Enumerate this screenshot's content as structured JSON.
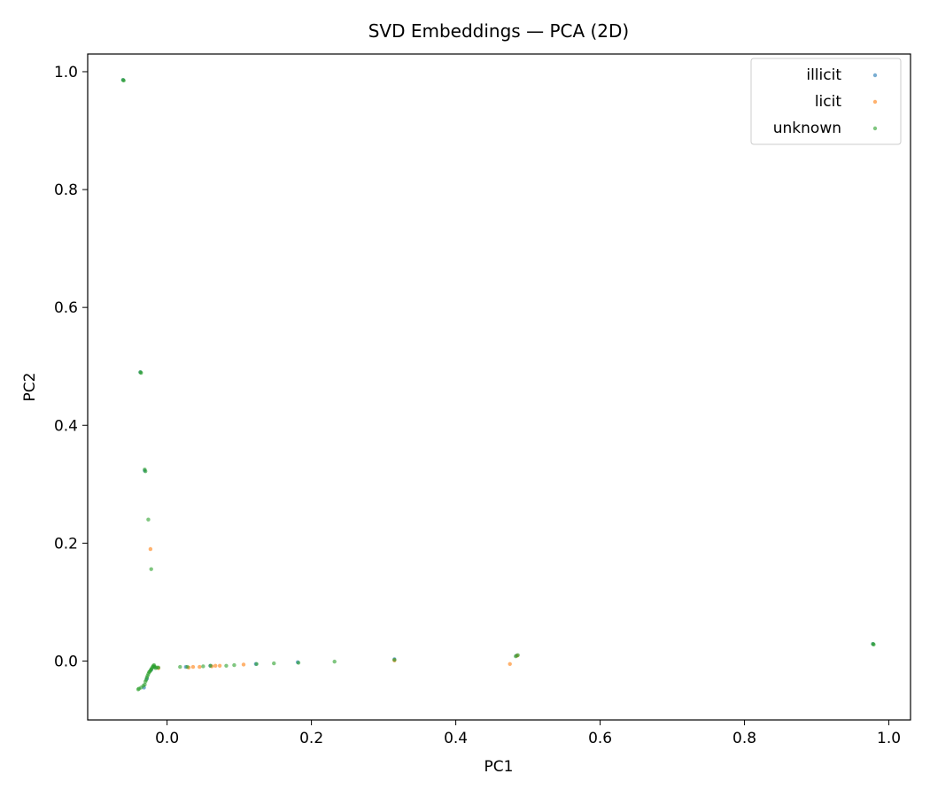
{
  "chart_data": {
    "type": "scatter",
    "title": "SVD Embeddings — PCA (2D)",
    "xlabel": "PC1",
    "ylabel": "PC2",
    "xlim": [
      -0.11,
      1.03
    ],
    "ylim": [
      -0.1,
      1.03
    ],
    "xticks": [
      0.0,
      0.2,
      0.4,
      0.6,
      0.8,
      1.0
    ],
    "xtick_labels": [
      "0.0",
      "0.2",
      "0.4",
      "0.6",
      "0.8",
      "1.0"
    ],
    "yticks": [
      0.0,
      0.2,
      0.4,
      0.6,
      0.8,
      1.0
    ],
    "ytick_labels": [
      "0.0",
      "0.2",
      "0.4",
      "0.6",
      "0.8",
      "1.0"
    ],
    "grid": false,
    "legend_position": "top-right",
    "series": [
      {
        "name": "illicit",
        "color": "#1f77b4",
        "points": [
          [
            -0.061,
            0.986
          ],
          [
            -0.037,
            0.49
          ],
          [
            -0.031,
            0.323
          ],
          [
            -0.032,
            -0.045
          ],
          [
            -0.028,
            -0.03
          ],
          [
            -0.022,
            -0.015
          ],
          [
            -0.018,
            -0.01
          ],
          [
            0.026,
            -0.01
          ],
          [
            0.06,
            -0.008
          ],
          [
            0.123,
            -0.005
          ],
          [
            0.181,
            -0.002
          ],
          [
            0.315,
            0.003
          ],
          [
            0.484,
            0.009
          ],
          [
            0.978,
            0.029
          ]
        ]
      },
      {
        "name": "licit",
        "color": "#ff7f0e",
        "points": [
          [
            -0.023,
            0.19
          ],
          [
            -0.012,
            -0.012
          ],
          [
            0.03,
            -0.011
          ],
          [
            0.036,
            -0.01
          ],
          [
            0.045,
            -0.01
          ],
          [
            0.062,
            -0.009
          ],
          [
            0.067,
            -0.008
          ],
          [
            0.073,
            -0.008
          ],
          [
            0.106,
            -0.006
          ],
          [
            0.475,
            -0.005
          ],
          [
            0.485,
            0.009
          ],
          [
            0.315,
            0.001
          ]
        ]
      },
      {
        "name": "unknown",
        "color": "#2ca02c",
        "points": [
          [
            -0.061,
            0.986
          ],
          [
            -0.06,
            0.985
          ],
          [
            -0.037,
            0.49
          ],
          [
            -0.036,
            0.489
          ],
          [
            -0.031,
            0.325
          ],
          [
            -0.03,
            0.322
          ],
          [
            -0.026,
            0.24
          ],
          [
            -0.022,
            0.156
          ],
          [
            -0.04,
            -0.048
          ],
          [
            -0.039,
            -0.047
          ],
          [
            -0.036,
            -0.045
          ],
          [
            -0.033,
            -0.042
          ],
          [
            -0.031,
            -0.04
          ],
          [
            -0.03,
            -0.035
          ],
          [
            -0.029,
            -0.032
          ],
          [
            -0.028,
            -0.028
          ],
          [
            -0.027,
            -0.025
          ],
          [
            -0.026,
            -0.022
          ],
          [
            -0.025,
            -0.019
          ],
          [
            -0.024,
            -0.018
          ],
          [
            -0.023,
            -0.016
          ],
          [
            -0.022,
            -0.014
          ],
          [
            -0.021,
            -0.012
          ],
          [
            -0.02,
            -0.01
          ],
          [
            -0.019,
            -0.008
          ],
          [
            -0.018,
            -0.007
          ],
          [
            -0.017,
            -0.01
          ],
          [
            -0.016,
            -0.012
          ],
          [
            -0.014,
            -0.011
          ],
          [
            -0.012,
            -0.011
          ],
          [
            0.018,
            -0.01
          ],
          [
            0.028,
            -0.01
          ],
          [
            0.05,
            -0.009
          ],
          [
            0.06,
            -0.008
          ],
          [
            0.082,
            -0.008
          ],
          [
            0.093,
            -0.007
          ],
          [
            0.124,
            -0.005
          ],
          [
            0.148,
            -0.004
          ],
          [
            0.182,
            -0.003
          ],
          [
            0.232,
            -0.001
          ],
          [
            0.315,
            0.002
          ],
          [
            0.483,
            0.008
          ],
          [
            0.486,
            0.01
          ],
          [
            0.978,
            0.029
          ],
          [
            0.979,
            0.028
          ]
        ]
      }
    ]
  }
}
